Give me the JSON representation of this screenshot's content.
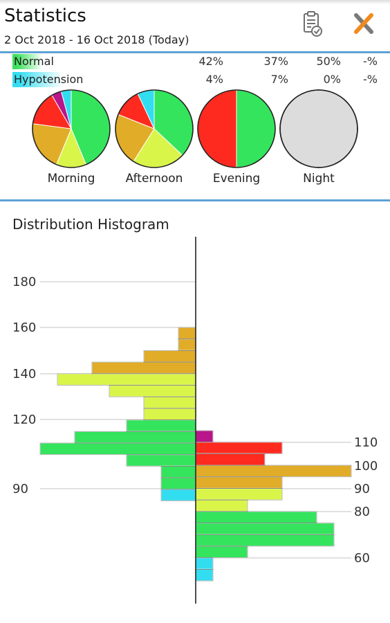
{
  "header": {
    "title": "Statistics",
    "date_range": "2 Oct 2018 - 16 Oct 2018 (Today)",
    "report_icon": "clipboard-check-icon",
    "settings_icon": "tools-icon"
  },
  "summary": {
    "rows": [
      {
        "label": "Normal",
        "color": "#3ce15d",
        "values": [
          "42%",
          "37%",
          "50%",
          "-%"
        ]
      },
      {
        "label": "Hypotension",
        "color": "#33ddf0",
        "values": [
          "4%",
          "7%",
          "0%",
          "-%"
        ]
      }
    ],
    "pies": [
      {
        "label": "Morning",
        "slices": [
          {
            "value": 42,
            "color": "#34e45d"
          },
          {
            "value": 12,
            "color": "#d9f54a"
          },
          {
            "value": 20,
            "color": "#e1ac27"
          },
          {
            "value": 14,
            "color": "#ff2a1f"
          },
          {
            "value": 4,
            "color": "#b8168a"
          },
          {
            "value": 4,
            "color": "#33ddf0"
          }
        ]
      },
      {
        "label": "Afternoon",
        "slices": [
          {
            "value": 37,
            "color": "#34e45d"
          },
          {
            "value": 22,
            "color": "#d9f54a"
          },
          {
            "value": 22,
            "color": "#e1ac27"
          },
          {
            "value": 12,
            "color": "#ff2a1f"
          },
          {
            "value": 7,
            "color": "#33ddf0"
          }
        ]
      },
      {
        "label": "Evening",
        "slices": [
          {
            "value": 50,
            "color": "#34e45d"
          },
          {
            "value": 50,
            "color": "#ff2a1f"
          }
        ]
      },
      {
        "label": "Night",
        "slices": [
          {
            "value": 100,
            "color": "#dcdcdc"
          }
        ]
      }
    ]
  },
  "histogram": {
    "title": "Distribution Histogram",
    "left_ticks": [
      "180",
      "160",
      "140",
      "120",
      "90"
    ],
    "right_ticks": [
      "110",
      "100",
      "90",
      "80",
      "60"
    ],
    "left_bars": [
      {
        "value": 1,
        "color": "#e1ac27"
      },
      {
        "value": 1,
        "color": "#e1ac27"
      },
      {
        "value": 3,
        "color": "#e1ac27"
      },
      {
        "value": 6,
        "color": "#e1ac27"
      },
      {
        "value": 8,
        "color": "#d9f54a"
      },
      {
        "value": 5,
        "color": "#d9f54a"
      },
      {
        "value": 3,
        "color": "#d9f54a"
      },
      {
        "value": 3,
        "color": "#d9f54a"
      },
      {
        "value": 4,
        "color": "#34e45d"
      },
      {
        "value": 7,
        "color": "#34e45d"
      },
      {
        "value": 9,
        "color": "#34e45d"
      },
      {
        "value": 4,
        "color": "#34e45d"
      },
      {
        "value": 2,
        "color": "#34e45d"
      },
      {
        "value": 2,
        "color": "#34e45d"
      },
      {
        "value": 2,
        "color": "#33ddf0"
      }
    ],
    "right_bars": [
      {
        "value": 1,
        "color": "#b8168a"
      },
      {
        "value": 5,
        "color": "#ff2a1f"
      },
      {
        "value": 4,
        "color": "#ff2a1f"
      },
      {
        "value": 9,
        "color": "#e1ac27"
      },
      {
        "value": 5,
        "color": "#e1ac27"
      },
      {
        "value": 5,
        "color": "#d9f54a"
      },
      {
        "value": 3,
        "color": "#d9f54a"
      },
      {
        "value": 7,
        "color": "#34e45d"
      },
      {
        "value": 8,
        "color": "#34e45d"
      },
      {
        "value": 8,
        "color": "#34e45d"
      },
      {
        "value": 3,
        "color": "#34e45d"
      },
      {
        "value": 1,
        "color": "#33ddf0"
      },
      {
        "value": 1,
        "color": "#33ddf0"
      }
    ]
  }
}
